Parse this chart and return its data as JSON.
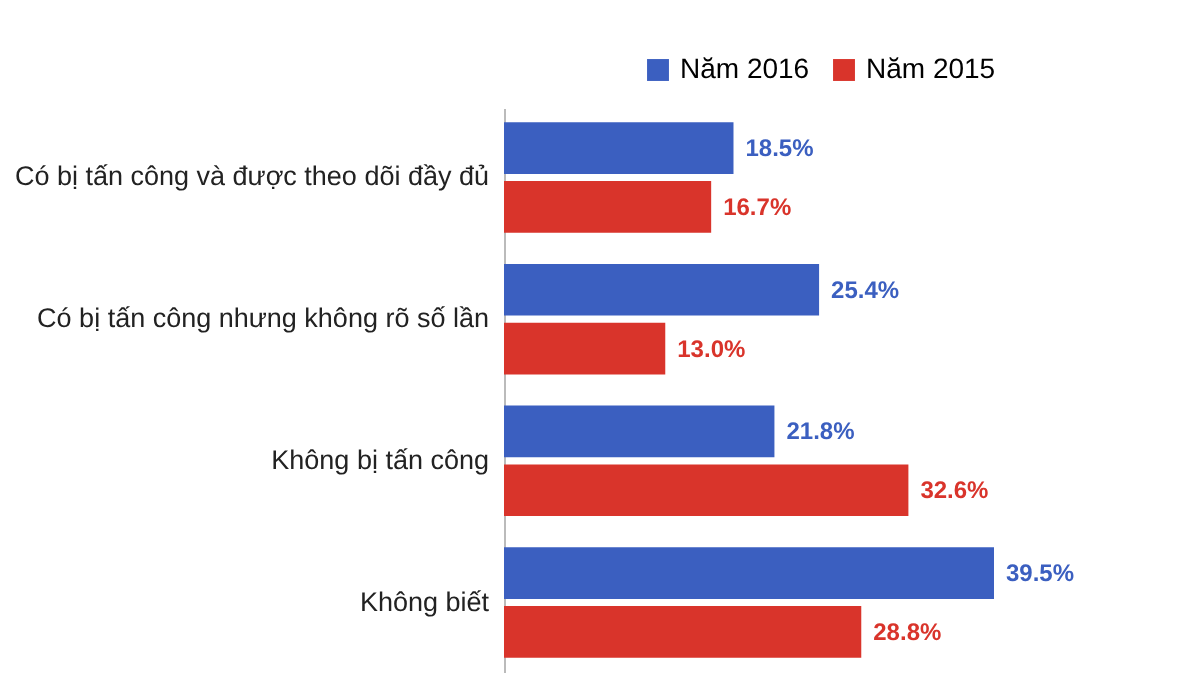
{
  "chart_data": {
    "type": "bar",
    "orientation": "horizontal",
    "categories": [
      "Có bị tấn công và được theo dõi đầy đủ",
      "Có bị tấn công nhưng không rõ số lần",
      "Không bị tấn công",
      "Không biết"
    ],
    "series": [
      {
        "name": "Năm 2016",
        "color": "#3b5fc0",
        "values": [
          18.5,
          25.4,
          21.8,
          39.5
        ],
        "value_labels": [
          "18.5%",
          "25.4%",
          "21.8%",
          "39.5%"
        ]
      },
      {
        "name": "Năm 2015",
        "color": "#d9342b",
        "values": [
          16.7,
          13.0,
          32.6,
          28.8
        ],
        "value_labels": [
          "16.7%",
          "13.0%",
          "32.6%",
          "28.8%"
        ]
      }
    ],
    "legend": "top right",
    "tick_labels": "y"
  }
}
